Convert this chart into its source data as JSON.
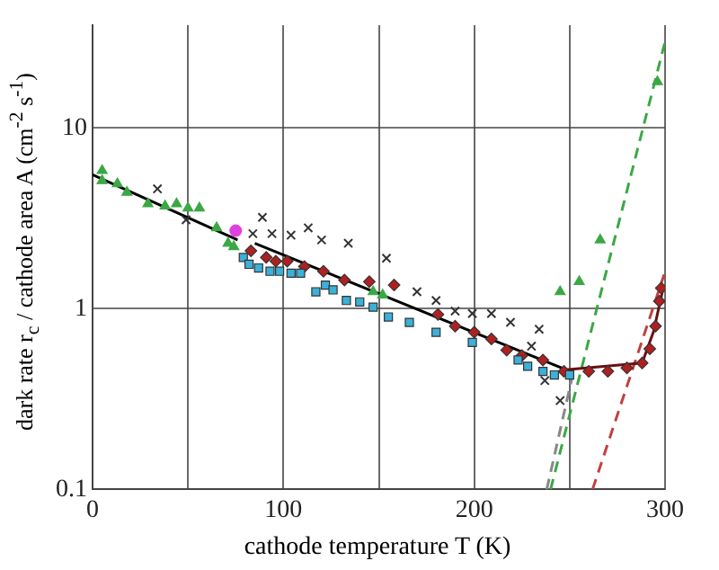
{
  "chart_data": {
    "type": "scatter",
    "xlabel": "cathode temperature T (K)",
    "ylabel": "dark rate r$_{c}$ / cathode area A (cm$^{-2}$ s$^{-1}$)",
    "xlim": [
      0,
      300
    ],
    "xticks": [
      0,
      {
        "value": 50,
        "label": null
      },
      100,
      {
        "value": 150,
        "label": null
      },
      200,
      {
        "value": 250,
        "label": null
      },
      300
    ],
    "ylim": [
      0.1,
      37
    ],
    "yticks": [
      0.1,
      1,
      10
    ],
    "log": true,
    "grid": true,
    "legend": false,
    "series": [
      {
        "marker": "triangle",
        "color": "#3aa845",
        "x": [
          5,
          5,
          13,
          18,
          29,
          38,
          44,
          50,
          56,
          65,
          71,
          74,
          147,
          152,
          245,
          255,
          266,
          296
        ],
        "values": [
          5.8,
          5.1,
          4.9,
          4.4,
          3.8,
          3.7,
          3.8,
          3.6,
          3.6,
          2.8,
          2.3,
          2.2,
          1.24,
          1.19,
          1.24,
          1.41,
          2.4,
          18
        ]
      },
      {
        "marker": "cross",
        "color": "#333333",
        "x": [
          34,
          49,
          84,
          89,
          94,
          104,
          113,
          120,
          134,
          154,
          170,
          180,
          190,
          199,
          209,
          219,
          230,
          234,
          237,
          245
        ],
        "values": [
          4.6,
          3.1,
          2.6,
          3.2,
          2.6,
          2.55,
          2.8,
          2.4,
          2.3,
          1.9,
          1.24,
          1.11,
          0.97,
          0.94,
          0.94,
          0.84,
          0.62,
          0.77,
          0.4,
          0.31
        ]
      },
      {
        "marker": "square",
        "color": "#3bb0d8",
        "x": [
          79,
          82,
          87,
          93,
          98,
          104,
          109,
          117,
          122,
          126,
          133,
          140,
          147,
          155,
          166,
          180,
          199,
          223,
          228,
          236,
          242,
          250
        ],
        "values": [
          1.92,
          1.76,
          1.68,
          1.61,
          1.61,
          1.57,
          1.57,
          1.24,
          1.35,
          1.27,
          1.11,
          1.09,
          1.02,
          0.9,
          0.84,
          0.74,
          0.65,
          0.52,
          0.48,
          0.45,
          0.43,
          0.43
        ]
      },
      {
        "marker": "diamond",
        "color": "#b02020",
        "x": [
          83,
          91,
          96,
          102,
          111,
          121,
          132,
          145,
          158,
          181,
          190,
          200,
          209,
          217,
          225,
          236,
          247,
          260,
          270,
          280,
          288,
          292,
          295,
          297,
          298
        ],
        "values": [
          2.09,
          1.92,
          1.83,
          1.83,
          1.71,
          1.61,
          1.44,
          1.41,
          1.35,
          0.93,
          0.8,
          0.74,
          0.68,
          0.59,
          0.55,
          0.52,
          0.45,
          0.45,
          0.45,
          0.47,
          0.5,
          0.6,
          0.8,
          1.1,
          1.3
        ]
      },
      {
        "marker": "circle",
        "color": "#e040e0",
        "x": [
          75
        ],
        "values": [
          2.7
        ]
      },
      {
        "type": "line",
        "line_style": "solid",
        "color": "#000000",
        "x": [
          0,
          76
        ],
        "values": [
          5.5,
          2.4
        ]
      },
      {
        "type": "line",
        "line_style": "solid",
        "color": "#000000",
        "x": [
          85,
          248
        ],
        "values": [
          2.3,
          0.46
        ]
      },
      {
        "type": "line",
        "line_style": "solid",
        "color": "#6a1010",
        "x": [
          248,
          288,
          294,
          299
        ],
        "values": [
          0.46,
          0.5,
          0.75,
          1.3
        ]
      },
      {
        "type": "line",
        "line_style": "dashed",
        "color": "#3aa845",
        "x": [
          240,
          300
        ],
        "values": [
          0.1,
          30
        ]
      },
      {
        "type": "line",
        "line_style": "dashed",
        "color": "#888888",
        "x": [
          238,
          252
        ],
        "values": [
          0.1,
          0.45
        ]
      },
      {
        "type": "line",
        "line_style": "dashed",
        "color": "#c04040",
        "x": [
          262,
          300
        ],
        "values": [
          0.1,
          1.6
        ]
      }
    ]
  }
}
